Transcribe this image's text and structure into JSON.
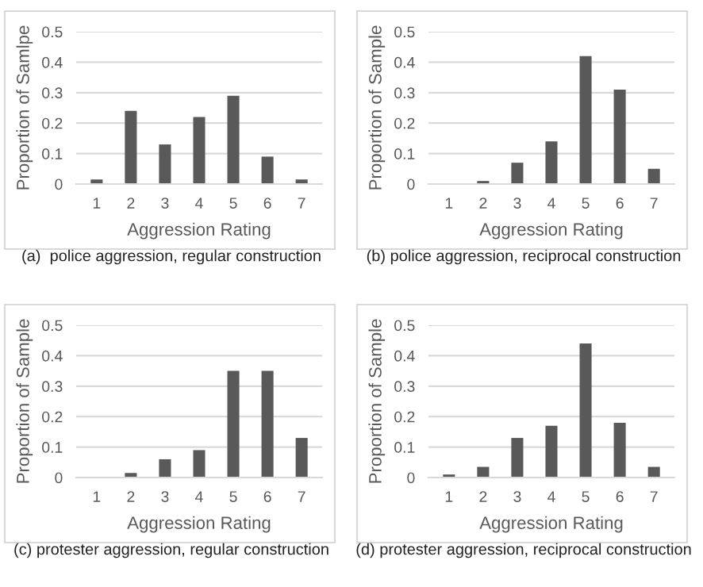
{
  "chart_data": [
    {
      "type": "bar",
      "categories": [
        "1",
        "2",
        "3",
        "4",
        "5",
        "6",
        "7"
      ],
      "values": [
        0.015,
        0.24,
        0.13,
        0.22,
        0.29,
        0.09,
        0.015
      ],
      "color": "#595959",
      "xlabel": "Aggression Rating",
      "ylabel": "Proportion of Samlpe",
      "ylim": [
        0,
        0.5
      ],
      "yticks": [
        0,
        0.1,
        0.2,
        0.3,
        0.4,
        0.5
      ],
      "grid": "y",
      "annotations": [
        "(a)  police aggression, regular construction"
      ]
    },
    {
      "type": "bar",
      "categories": [
        "1",
        "2",
        "3",
        "4",
        "5",
        "6",
        "7"
      ],
      "values": [
        0,
        0.01,
        0.07,
        0.14,
        0.42,
        0.31,
        0.05
      ],
      "color": "#595959",
      "xlabel": "Aggression Rating",
      "ylabel": "Proportion of Sample",
      "ylim": [
        0,
        0.5
      ],
      "yticks": [
        0,
        0.1,
        0.2,
        0.3,
        0.4,
        0.5
      ],
      "grid": "y",
      "annotations": [
        "(b) police aggression, reciprocal construction"
      ]
    },
    {
      "type": "bar",
      "categories": [
        "1",
        "2",
        "3",
        "4",
        "5",
        "6",
        "7"
      ],
      "values": [
        0,
        0.015,
        0.06,
        0.09,
        0.35,
        0.35,
        0.13
      ],
      "color": "#595959",
      "xlabel": "Aggression Rating",
      "ylabel": "Proportion of Sample",
      "ylim": [
        0,
        0.5
      ],
      "yticks": [
        0,
        0.1,
        0.2,
        0.3,
        0.4,
        0.5
      ],
      "grid": "y",
      "annotations": [
        "(c) protester aggression, regular construction"
      ]
    },
    {
      "type": "bar",
      "categories": [
        "1",
        "2",
        "3",
        "4",
        "5",
        "6",
        "7"
      ],
      "values": [
        0.01,
        0.035,
        0.13,
        0.17,
        0.44,
        0.18,
        0.035
      ],
      "color": "#595959",
      "xlabel": "Aggression Rating",
      "ylabel": "Proportion of Sample",
      "ylim": [
        0,
        0.5
      ],
      "yticks": [
        0,
        0.1,
        0.2,
        0.3,
        0.4,
        0.5
      ],
      "grid": "y",
      "annotations": [
        "(d) protester aggression, reciprocal construction"
      ]
    }
  ]
}
